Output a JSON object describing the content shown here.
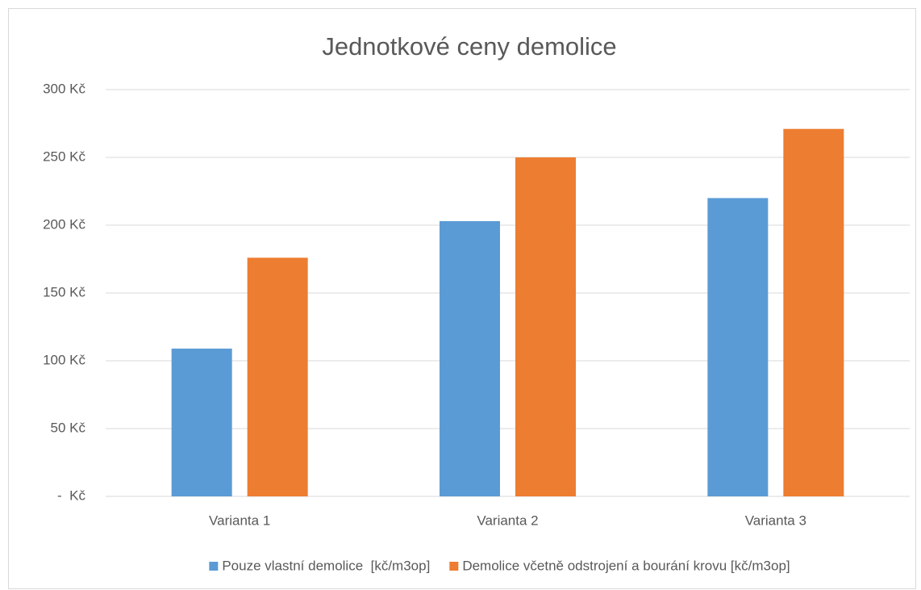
{
  "chart_data": {
    "type": "bar",
    "title": "Jednotkové ceny demolice",
    "categories": [
      "Varianta 1",
      "Varianta 2",
      "Varianta 3"
    ],
    "series": [
      {
        "name": "Pouze vlastní demolice  [kč/m3op]",
        "color": "#5b9bd5",
        "values": [
          109,
          203,
          220
        ]
      },
      {
        "name": "Demolice včetně odstrojení a bourání krovu [kč/m3op]",
        "color": "#ed7d31",
        "values": [
          176,
          250,
          271
        ]
      }
    ],
    "ylim": [
      0,
      300
    ],
    "yticks": [
      {
        "value": 0,
        "label": "-  Kč"
      },
      {
        "value": 50,
        "label": "50 Kč"
      },
      {
        "value": 100,
        "label": "100 Kč"
      },
      {
        "value": 150,
        "label": "150 Kč"
      },
      {
        "value": 200,
        "label": "200 Kč"
      },
      {
        "value": 250,
        "label": "250 Kč"
      },
      {
        "value": 300,
        "label": "300 Kč"
      }
    ],
    "grid": true,
    "legend": "bottom"
  }
}
